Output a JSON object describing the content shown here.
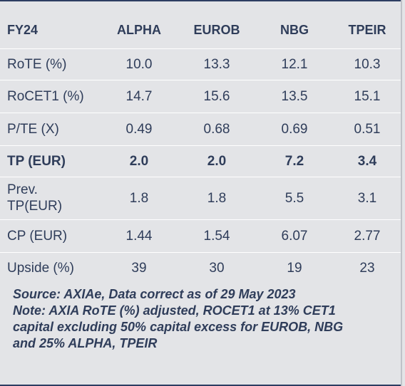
{
  "table": {
    "headers": [
      "FY24",
      "ALPHA",
      "EUROB",
      "NBG",
      "TPEIR"
    ],
    "rows": [
      {
        "label": "RoTE (%)",
        "values": [
          "10.0",
          "13.3",
          "12.1",
          "10.3"
        ]
      },
      {
        "label": "RoCET1 (%)",
        "values": [
          "14.7",
          "15.6",
          "13.5",
          "15.1"
        ]
      },
      {
        "label": "P/TE (X)",
        "values": [
          "0.49",
          "0.68",
          "0.69",
          "0.51"
        ]
      },
      {
        "label": "TP (EUR)",
        "values": [
          "2.0",
          "2.0",
          "7.2",
          "3.4"
        ]
      },
      {
        "label": "Prev. TP(EUR)",
        "values": [
          "1.8",
          "1.8",
          "5.5",
          "3.1"
        ]
      },
      {
        "label": "CP (EUR)",
        "values": [
          "1.44",
          "1.54",
          "6.07",
          "2.77"
        ]
      },
      {
        "label": "Upside (%)",
        "values": [
          "39",
          "30",
          "19",
          "23"
        ]
      }
    ]
  },
  "footnote": {
    "source": "Source: AXIAe, Data correct as of 29 May 2023",
    "note_line1": "Note: AXIA RoTE (%) adjusted, ROCET1 at 13% CET1",
    "note_line2": "capital excluding 50% capital excess for EUROB, NBG",
    "note_line3": "and 25% ALPHA, TPEIR"
  },
  "colors": {
    "background": "#e3e4e7",
    "text": "#2f3d5a",
    "rule": "#2d3d62"
  }
}
